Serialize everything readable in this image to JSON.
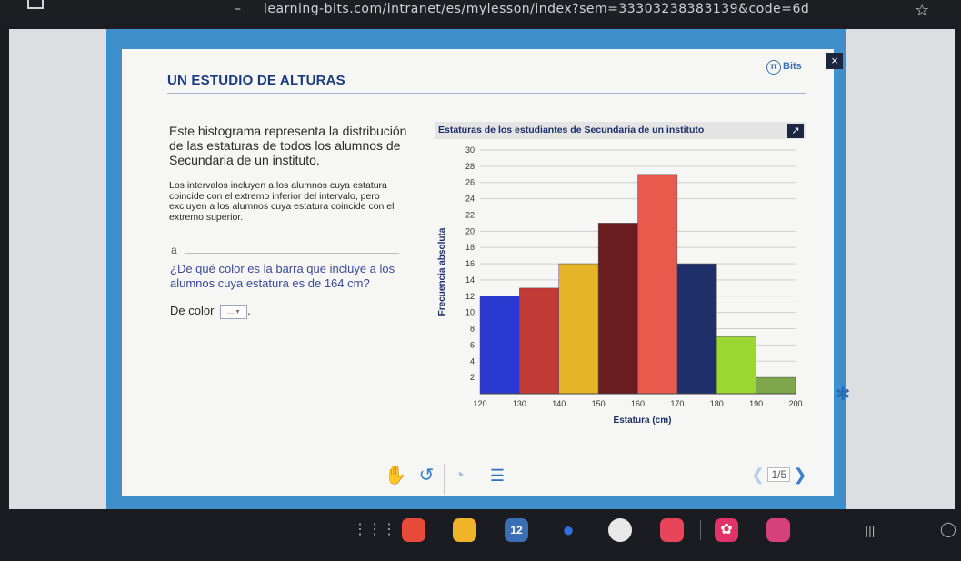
{
  "browser": {
    "url": "learning-bits.com/intranet/es/mylesson/index?sem=3330323838313​9&code=6d",
    "star_icon": "star-icon"
  },
  "lesson": {
    "title": "UN ESTUDIO DE ALTURAS",
    "logo_text": "Bits",
    "close_label": "×",
    "intro": "Este histograma representa la distribución de las estaturas de todos los alumnos de Secundaria de un instituto.",
    "note": "Los intervalos incluyen a los alumnos cuya estatura coincide con el extremo inferior del intervalo, pero excluyen a los alumnos cuya estatura coincide con el extremo superior.",
    "question_letter": "a",
    "question": "¿De qué color es la barra que incluye a los alumnos cuya estatura es de 164 cm?",
    "answer_prefix": "De color",
    "answer_select": "...",
    "answer_suffix": "."
  },
  "pager": {
    "current": "1/5"
  },
  "colors": {
    "frame": "#3e8fcc",
    "title": "#1b3c7a"
  },
  "chart_data": {
    "type": "bar",
    "title": "Estaturas de los estudiantes de Secundaria de un instituto",
    "xlabel": "Estatura (cm)",
    "ylabel": "Frecuencia absoluta",
    "x_ticks": [
      120,
      130,
      140,
      150,
      160,
      170,
      180,
      190,
      200
    ],
    "y_ticks": [
      2,
      4,
      6,
      8,
      10,
      12,
      14,
      16,
      18,
      20,
      22,
      24,
      26,
      28,
      30
    ],
    "ylim": [
      0,
      30
    ],
    "xlim": [
      120,
      200
    ],
    "grid": true,
    "bins": [
      {
        "from": 120,
        "to": 130,
        "value": 12,
        "color": "#2a3ad0"
      },
      {
        "from": 130,
        "to": 140,
        "value": 13,
        "color": "#c23a35"
      },
      {
        "from": 140,
        "to": 150,
        "value": 16,
        "color": "#e5b428"
      },
      {
        "from": 150,
        "to": 160,
        "value": 21,
        "color": "#6a1d1f"
      },
      {
        "from": 160,
        "to": 170,
        "value": 27,
        "color": "#ea5a4c"
      },
      {
        "from": 170,
        "to": 180,
        "value": 16,
        "color": "#1e2f6a"
      },
      {
        "from": 180,
        "to": 190,
        "value": 7,
        "color": "#9cd630"
      },
      {
        "from": 190,
        "to": 200,
        "value": 2,
        "color": "#7ea64a"
      }
    ]
  }
}
